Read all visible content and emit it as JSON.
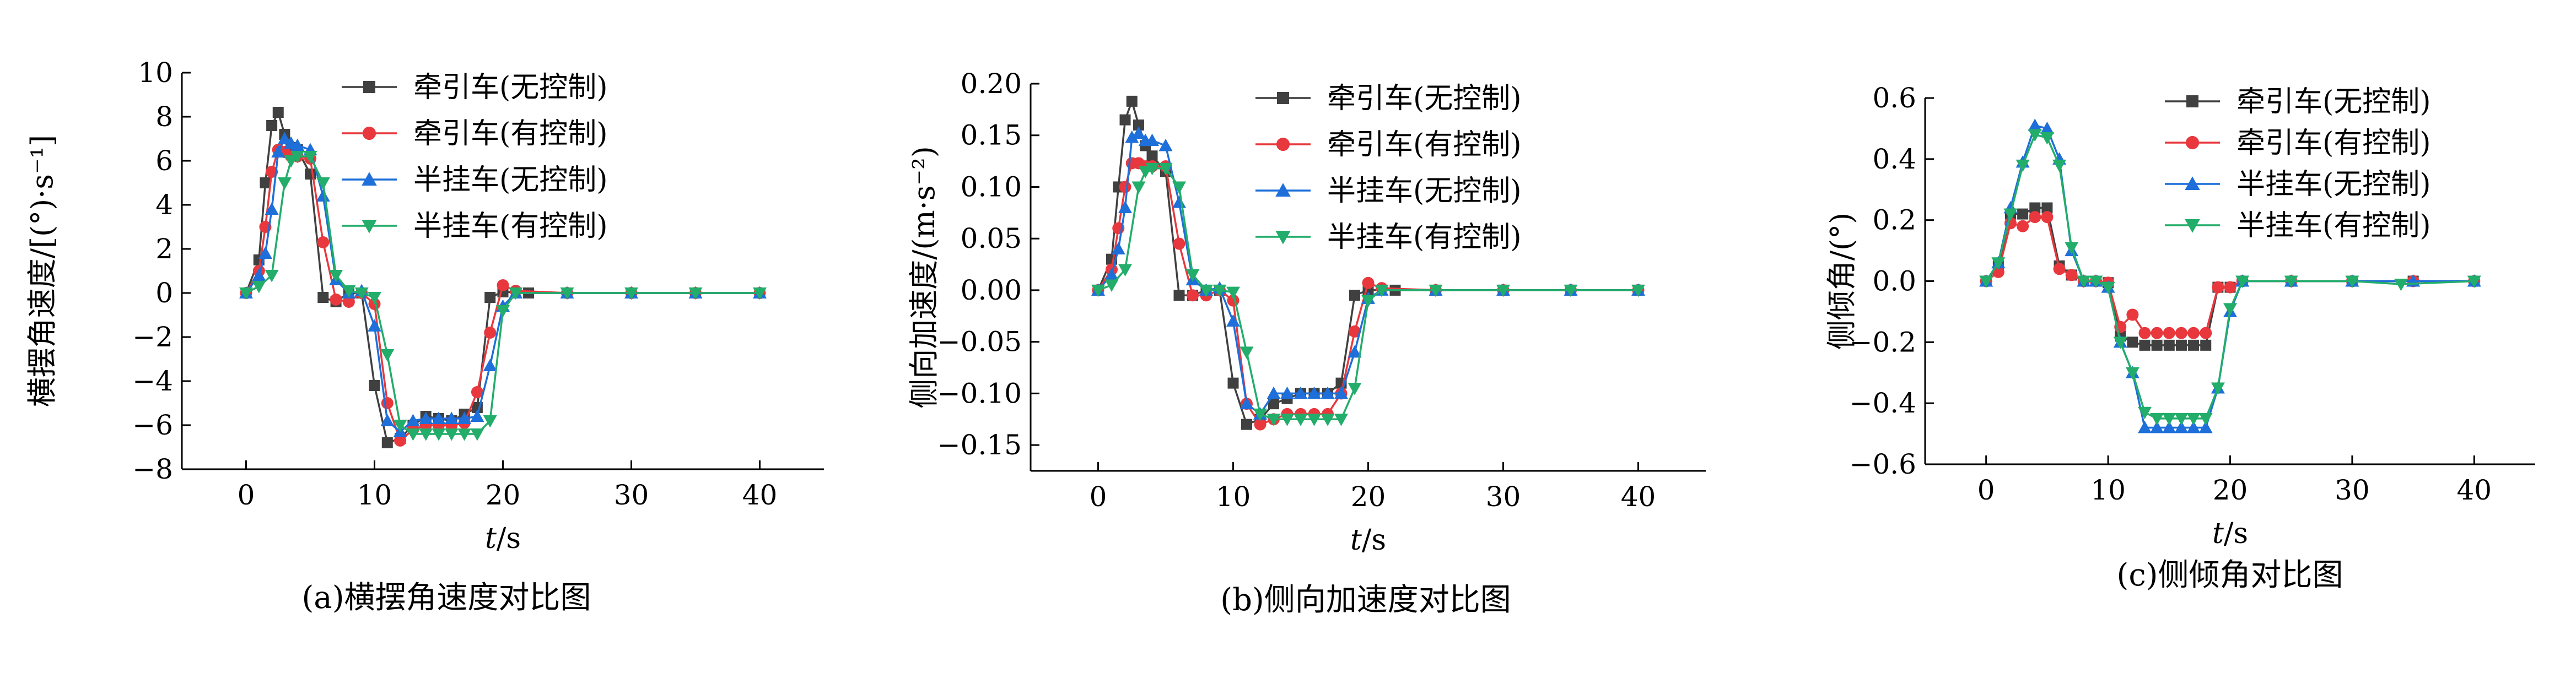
{
  "chart_data": [
    {
      "type": "line",
      "caption": "(a)横摆角速度对比图",
      "xlabel_italic": "t",
      "xlabel_unit": "/s",
      "ylabel": "横摆角速度/[(°)·s⁻¹]",
      "xlim": [
        -5,
        45
      ],
      "ylim": [
        -8,
        10
      ],
      "xticks": [
        0,
        10,
        20,
        30,
        40
      ],
      "yticks": [
        -8,
        -6,
        -4,
        -2,
        0,
        2,
        4,
        6,
        8,
        10
      ],
      "ytick_labels": [
        "−8",
        "−6",
        "−4",
        "−2",
        "0",
        "2",
        "4",
        "6",
        "8",
        "10"
      ],
      "legend_position": "top-center",
      "series": [
        {
          "name": "牵引车(无控制)",
          "color": "#404040",
          "marker": "square",
          "x": [
            0,
            1,
            1.5,
            2,
            2.5,
            3,
            3.5,
            4,
            5,
            6,
            7,
            8,
            9,
            10,
            11,
            12,
            13,
            14,
            15,
            16,
            17,
            18,
            19,
            20,
            22,
            25,
            30,
            35,
            40
          ],
          "y": [
            0,
            1.5,
            5,
            7.6,
            8.2,
            7.2,
            6.6,
            6.5,
            5.4,
            -0.2,
            -0.4,
            0,
            0,
            -4.2,
            -6.8,
            -6.6,
            -6,
            -5.6,
            -5.7,
            -5.8,
            -5.5,
            -5.2,
            -0.2,
            0.05,
            0,
            0,
            0,
            0,
            0
          ]
        },
        {
          "name": "牵引车(有控制)",
          "color": "#e8383d",
          "marker": "circle",
          "x": [
            0,
            1,
            1.5,
            2,
            2.5,
            3,
            3.5,
            4,
            5,
            6,
            7,
            8,
            9,
            10,
            11,
            12,
            13,
            14,
            15,
            16,
            17,
            18,
            19,
            20,
            21,
            25,
            30,
            35,
            40
          ],
          "y": [
            0,
            1,
            3,
            5.5,
            6.5,
            6.4,
            6.2,
            6.2,
            6.1,
            2.3,
            -0.3,
            -0.4,
            0,
            -0.5,
            -5,
            -6.7,
            -6.2,
            -6,
            -6,
            -6,
            -5.9,
            -4.5,
            -1.8,
            0.35,
            0.1,
            0,
            0,
            0,
            0
          ]
        },
        {
          "name": "半挂车(无控制)",
          "color": "#1e6fd9",
          "marker": "triangle-up",
          "x": [
            0,
            1,
            1.5,
            2,
            2.5,
            3,
            3.5,
            4,
            5,
            6,
            7,
            8,
            9,
            10,
            11,
            12,
            13,
            14,
            15,
            16,
            17,
            18,
            19,
            20,
            21,
            25,
            30,
            35,
            40
          ],
          "y": [
            0,
            0.8,
            1.8,
            3.8,
            6.4,
            7,
            6.8,
            6.7,
            6.5,
            4.4,
            0.6,
            0,
            0.1,
            -1.5,
            -5.8,
            -6.3,
            -5.8,
            -5.7,
            -5.7,
            -5.7,
            -5.7,
            -5.6,
            -3.3,
            -0.6,
            0,
            0,
            0,
            0,
            0
          ]
        },
        {
          "name": "半挂车(有控制)",
          "color": "#22ad6a",
          "marker": "triangle-down",
          "x": [
            0,
            1,
            2,
            3,
            3.5,
            4,
            5,
            6,
            7,
            8,
            9,
            10,
            11,
            12,
            13,
            14,
            15,
            16,
            17,
            18,
            19,
            20,
            21,
            25,
            30,
            35,
            40
          ],
          "y": [
            0,
            0.3,
            0.8,
            5,
            6,
            6.2,
            6.2,
            5,
            0.8,
            0.1,
            0,
            -0.2,
            -2.8,
            -6,
            -6.4,
            -6.4,
            -6.4,
            -6.4,
            -6.4,
            -6.4,
            -5.8,
            -0.8,
            0,
            0,
            0,
            0,
            0
          ]
        }
      ]
    },
    {
      "type": "line",
      "caption": "(b)侧向加速度对比图",
      "xlabel_italic": "t",
      "xlabel_unit": "/s",
      "ylabel": "侧向加速度/(m·s⁻²)",
      "xlim": [
        -5,
        45
      ],
      "ylim": [
        -0.175,
        0.2
      ],
      "xticks": [
        0,
        10,
        20,
        30,
        40
      ],
      "yticks": [
        -0.15,
        -0.1,
        -0.05,
        0,
        0.05,
        0.1,
        0.15,
        0.2
      ],
      "ytick_labels": [
        "−0.15",
        "−0.10",
        "−0.05",
        "0.00",
        "0.05",
        "0.10",
        "0.15",
        "0.20"
      ],
      "legend_position": "top-center",
      "series": [
        {
          "name": "牵引车(无控制)",
          "color": "#404040",
          "marker": "square",
          "x": [
            0,
            1,
            1.5,
            2,
            2.5,
            3,
            3.5,
            4,
            5,
            6,
            7,
            8,
            9,
            10,
            11,
            12,
            13,
            14,
            15,
            16,
            17,
            18,
            19,
            20,
            22,
            25,
            30,
            35,
            40
          ],
          "y": [
            0,
            0.03,
            0.1,
            0.165,
            0.183,
            0.16,
            0.14,
            0.13,
            0.115,
            -0.005,
            -0.005,
            0,
            0,
            -0.09,
            -0.13,
            -0.125,
            -0.11,
            -0.105,
            -0.1,
            -0.1,
            -0.1,
            -0.09,
            -0.005,
            0,
            0,
            0,
            0,
            0,
            0
          ]
        },
        {
          "name": "牵引车(有控制)",
          "color": "#e8383d",
          "marker": "circle",
          "x": [
            0,
            1,
            1.5,
            2,
            2.5,
            3,
            3.5,
            4,
            5,
            6,
            7,
            8,
            9,
            10,
            11,
            12,
            13,
            14,
            15,
            16,
            17,
            18,
            19,
            20,
            21,
            25,
            30,
            35,
            40
          ],
          "y": [
            0,
            0.02,
            0.06,
            0.1,
            0.123,
            0.123,
            0.12,
            0.12,
            0.12,
            0.045,
            -0.005,
            -0.005,
            0,
            -0.01,
            -0.11,
            -0.13,
            -0.125,
            -0.12,
            -0.12,
            -0.12,
            -0.12,
            -0.1,
            -0.04,
            0.007,
            0.002,
            0,
            0,
            0,
            0
          ]
        },
        {
          "name": "半挂车(无控制)",
          "color": "#1e6fd9",
          "marker": "triangle-up",
          "x": [
            0,
            1,
            1.5,
            2,
            2.5,
            3,
            3.5,
            4,
            5,
            6,
            7,
            8,
            9,
            10,
            11,
            12,
            13,
            14,
            15,
            16,
            17,
            18,
            19,
            20,
            21,
            25,
            30,
            35,
            40
          ],
          "y": [
            0,
            0.015,
            0.04,
            0.08,
            0.148,
            0.152,
            0.145,
            0.145,
            0.14,
            0.085,
            0.01,
            0,
            0.002,
            -0.03,
            -0.11,
            -0.12,
            -0.1,
            -0.1,
            -0.1,
            -0.1,
            -0.1,
            -0.1,
            -0.06,
            -0.008,
            0,
            0,
            0,
            0,
            0
          ]
        },
        {
          "name": "半挂车(有控制)",
          "color": "#22ad6a",
          "marker": "triangle-down",
          "x": [
            0,
            1,
            2,
            3,
            3.5,
            4,
            5,
            6,
            7,
            8,
            9,
            10,
            11,
            12,
            13,
            14,
            15,
            16,
            17,
            18,
            19,
            20,
            21,
            25,
            30,
            35,
            40
          ],
          "y": [
            0,
            0.005,
            0.02,
            0.1,
            0.115,
            0.118,
            0.118,
            0.1,
            0.015,
            0,
            0,
            -0.002,
            -0.06,
            -0.12,
            -0.125,
            -0.125,
            -0.125,
            -0.125,
            -0.125,
            -0.125,
            -0.095,
            -0.01,
            0,
            0,
            0,
            0,
            0
          ]
        }
      ]
    },
    {
      "type": "line",
      "caption": "(c)侧倾角对比图",
      "xlabel_italic": "t",
      "xlabel_unit": "/s",
      "ylabel": "侧倾角/(°)",
      "xlim": [
        -5,
        45
      ],
      "ylim": [
        -0.6,
        0.6
      ],
      "xticks": [
        0,
        10,
        20,
        30,
        40
      ],
      "yticks": [
        -0.6,
        -0.4,
        -0.2,
        0,
        0.2,
        0.4,
        0.6
      ],
      "ytick_labels": [
        "−0.6",
        "−0.4",
        "−0.2",
        "0.0",
        "0.2",
        "0.4",
        "0.6"
      ],
      "legend_position": "top-center",
      "series": [
        {
          "name": "牵引车(无控制)",
          "color": "#404040",
          "marker": "square",
          "x": [
            0,
            1,
            2,
            3,
            4,
            5,
            6,
            7,
            8,
            9,
            10,
            11,
            12,
            13,
            14,
            15,
            16,
            17,
            18,
            19,
            20,
            21,
            25,
            30,
            35,
            40
          ],
          "y": [
            0,
            0.05,
            0.22,
            0.22,
            0.24,
            0.24,
            0.05,
            0.02,
            0,
            0,
            -0.005,
            -0.18,
            -0.2,
            -0.21,
            -0.21,
            -0.21,
            -0.21,
            -0.21,
            -0.21,
            -0.02,
            -0.02,
            0,
            0,
            0,
            0,
            0
          ]
        },
        {
          "name": "牵引车(有控制)",
          "color": "#e8383d",
          "marker": "circle",
          "x": [
            0,
            1,
            2,
            3,
            4,
            5,
            6,
            7,
            8,
            9,
            10,
            11,
            12,
            13,
            14,
            15,
            16,
            17,
            18,
            19,
            20,
            21,
            25,
            30,
            35,
            40
          ],
          "y": [
            0,
            0.03,
            0.19,
            0.18,
            0.21,
            0.21,
            0.04,
            0.02,
            0,
            0,
            -0.005,
            -0.15,
            -0.11,
            -0.17,
            -0.17,
            -0.17,
            -0.17,
            -0.17,
            -0.17,
            -0.02,
            -0.02,
            0,
            0,
            0,
            0,
            0
          ]
        },
        {
          "name": "半挂车(无控制)",
          "color": "#1e6fd9",
          "marker": "triangle-up",
          "x": [
            0,
            1,
            2,
            3,
            4,
            5,
            6,
            7,
            8,
            9,
            10,
            11,
            12,
            13,
            14,
            15,
            16,
            17,
            18,
            19,
            20,
            21,
            25,
            30,
            35,
            40
          ],
          "y": [
            0,
            0.06,
            0.24,
            0.39,
            0.51,
            0.5,
            0.4,
            0.1,
            0,
            0,
            -0.02,
            -0.2,
            -0.3,
            -0.48,
            -0.48,
            -0.48,
            -0.48,
            -0.48,
            -0.48,
            -0.35,
            -0.1,
            0,
            0,
            0,
            0,
            0
          ]
        },
        {
          "name": "半挂车(有控制)",
          "color": "#22ad6a",
          "marker": "triangle-down",
          "x": [
            0,
            1,
            2,
            3,
            4,
            5,
            6,
            7,
            8,
            9,
            10,
            11,
            12,
            13,
            14,
            15,
            16,
            17,
            18,
            19,
            20,
            21,
            25,
            30,
            34,
            40
          ],
          "y": [
            0,
            0.06,
            0.22,
            0.38,
            0.48,
            0.47,
            0.38,
            0.11,
            0,
            0,
            -0.02,
            -0.2,
            -0.3,
            -0.43,
            -0.45,
            -0.45,
            -0.45,
            -0.45,
            -0.45,
            -0.35,
            -0.09,
            0,
            0,
            0,
            -0.01,
            0
          ]
        }
      ]
    }
  ]
}
